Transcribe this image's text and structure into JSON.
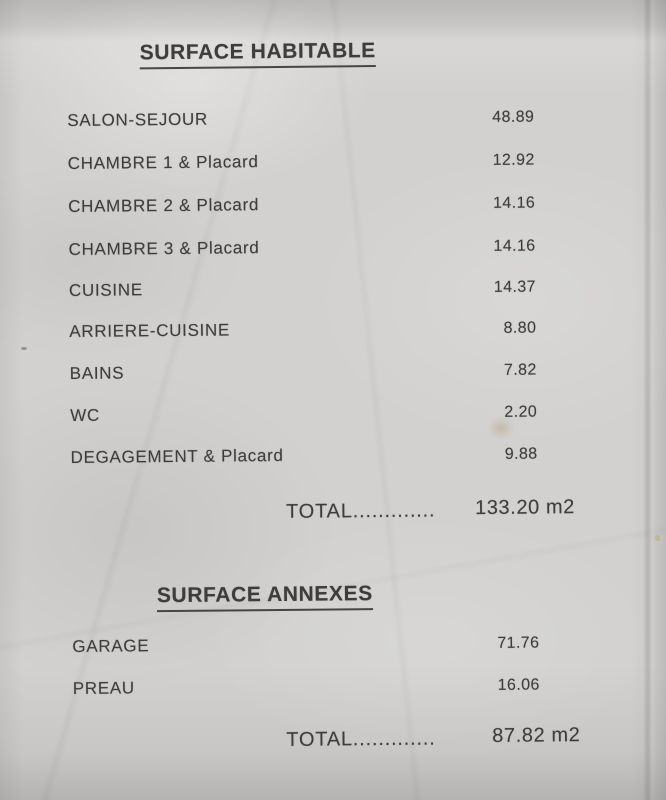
{
  "document": {
    "type": "surface-area-statement-photo",
    "colors": {
      "paper": "#d2d1cf",
      "ink": "#3e3d3b"
    },
    "sections": [
      {
        "title": "SURFACE HABITABLE",
        "rows": [
          {
            "label": "SALON-SEJOUR",
            "value": "48.89"
          },
          {
            "label": "CHAMBRE 1 & Placard",
            "value": "12.92"
          },
          {
            "label": "CHAMBRE 2 & Placard",
            "value": "14.16"
          },
          {
            "label": "CHAMBRE 3 & Placard",
            "value": "14.16"
          },
          {
            "label": "CUISINE",
            "value": "14.37"
          },
          {
            "label": "ARRIERE-CUISINE",
            "value": "8.80"
          },
          {
            "label": "BAINS",
            "value": "7.82"
          },
          {
            "label": "WC",
            "value": "2.20"
          },
          {
            "label": "DEGAGEMENT & Placard",
            "value": "9.88"
          }
        ],
        "total_label": "TOTAL.............",
        "total_value": "133.20 m2"
      },
      {
        "title": "SURFACE ANNEXES",
        "rows": [
          {
            "label": "GARAGE",
            "value": "71.76"
          },
          {
            "label": "PREAU",
            "value": "16.06"
          }
        ],
        "total_label": "TOTAL.............",
        "total_value": "87.82 m2"
      }
    ]
  }
}
